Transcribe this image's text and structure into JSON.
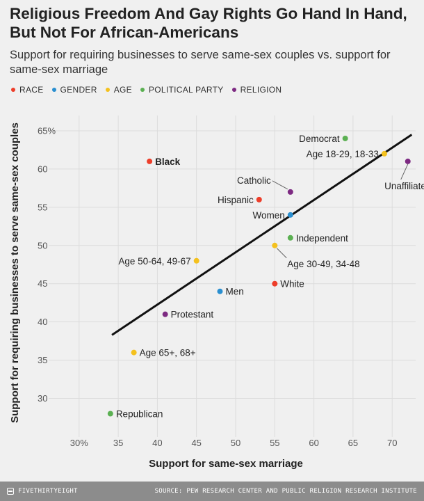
{
  "title": "Religious Freedom And Gay Rights Go Hand In Hand, But Not For African-Americans",
  "subtitle": "Support for requiring businesses to serve same-sex couples vs. support for same-sex marriage",
  "legend": [
    {
      "label": "RACE",
      "color": "#ed3e2a"
    },
    {
      "label": "GENDER",
      "color": "#2a8fd0"
    },
    {
      "label": "AGE",
      "color": "#f4c11e"
    },
    {
      "label": "POLITICAL PARTY",
      "color": "#5bb052"
    },
    {
      "label": "RELIGION",
      "color": "#7d2a82"
    }
  ],
  "chart_data": {
    "type": "scatter",
    "xlabel": "Support for same-sex marriage",
    "ylabel": "Support for requiring businesses to serve same-sex couples",
    "xlim": [
      27,
      73
    ],
    "ylim": [
      27.5,
      67
    ],
    "x_ticks": [
      {
        "value": 30,
        "label": "30%"
      },
      {
        "value": 35,
        "label": "35"
      },
      {
        "value": 40,
        "label": "40"
      },
      {
        "value": 45,
        "label": "45"
      },
      {
        "value": 50,
        "label": "50"
      },
      {
        "value": 55,
        "label": "55"
      },
      {
        "value": 60,
        "label": "60"
      },
      {
        "value": 65,
        "label": "65"
      },
      {
        "value": 70,
        "label": "70"
      }
    ],
    "y_ticks": [
      {
        "value": 30,
        "label": "30"
      },
      {
        "value": 35,
        "label": "35"
      },
      {
        "value": 40,
        "label": "40"
      },
      {
        "value": 45,
        "label": "45"
      },
      {
        "value": 50,
        "label": "50"
      },
      {
        "value": 55,
        "label": "55"
      },
      {
        "value": 60,
        "label": "60"
      },
      {
        "value": 65,
        "label": "65%"
      }
    ],
    "grid": true,
    "points": [
      {
        "label": "Black",
        "group": "RACE",
        "x": 39,
        "y": 61,
        "label_pos": "right",
        "bold": true
      },
      {
        "label": "Hispanic",
        "group": "RACE",
        "x": 53,
        "y": 56,
        "label_pos": "left"
      },
      {
        "label": "White",
        "group": "RACE",
        "x": 55,
        "y": 45,
        "label_pos": "right"
      },
      {
        "label": "Women",
        "group": "GENDER",
        "x": 57,
        "y": 54,
        "label_pos": "left"
      },
      {
        "label": "Men",
        "group": "GENDER",
        "x": 48,
        "y": 44,
        "label_pos": "right"
      },
      {
        "label": "Age 18-29, 18-33",
        "group": "AGE",
        "x": 69,
        "y": 62,
        "label_pos": "left"
      },
      {
        "label": "Age 30-49, 34-48",
        "group": "AGE",
        "x": 55,
        "y": 50,
        "label_pos": "below-right"
      },
      {
        "label": "Age 50-64, 49-67",
        "group": "AGE",
        "x": 45,
        "y": 48,
        "label_pos": "left"
      },
      {
        "label": "Age 65+, 68+",
        "group": "AGE",
        "x": 37,
        "y": 36,
        "label_pos": "right"
      },
      {
        "label": "Democrat",
        "group": "POLITICAL PARTY",
        "x": 64,
        "y": 64,
        "label_pos": "left"
      },
      {
        "label": "Independent",
        "group": "POLITICAL PARTY",
        "x": 57,
        "y": 51,
        "label_pos": "right"
      },
      {
        "label": "Republican",
        "group": "POLITICAL PARTY",
        "x": 34,
        "y": 28,
        "label_pos": "right"
      },
      {
        "label": "Catholic",
        "group": "RELIGION",
        "x": 57,
        "y": 57,
        "label_pos": "above-left"
      },
      {
        "label": "Unaffiliated",
        "group": "RELIGION",
        "x": 72,
        "y": 61,
        "label_pos": "below"
      },
      {
        "label": "Protestant",
        "group": "RELIGION",
        "x": 41,
        "y": 41,
        "label_pos": "right"
      }
    ],
    "trendline": {
      "x1": 34.2,
      "y1": 38.3,
      "x2": 72.5,
      "y2": 64.5
    }
  },
  "footer": {
    "brand": "FIVETHIRTYEIGHT",
    "source": "SOURCE: PEW RESEARCH CENTER AND PUBLIC RELIGION RESEARCH INSTITUTE"
  }
}
